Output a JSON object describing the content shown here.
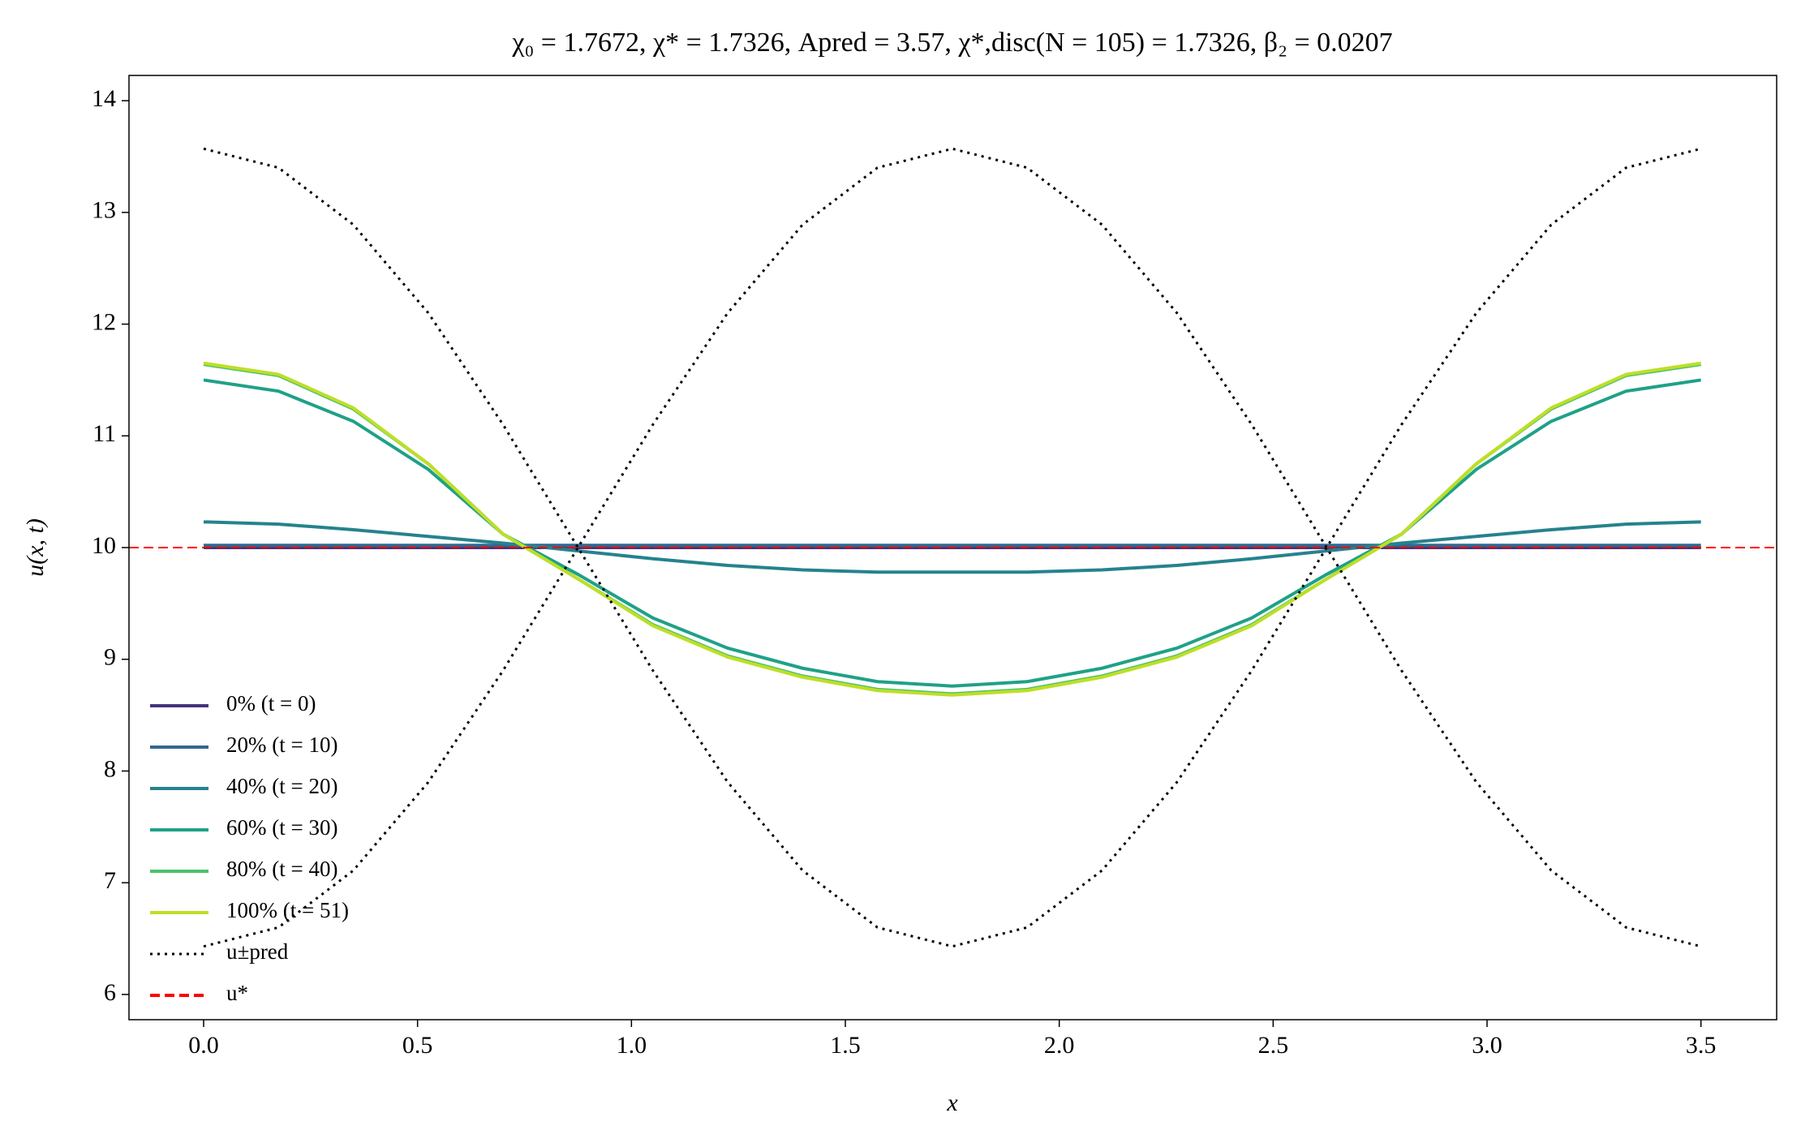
{
  "chart_data": {
    "type": "line",
    "title": "χ₀ = 1.7672,  χ* = 1.7326,  Apred = 3.57,  χ*,disc(N = 105) = 1.7326,  β₂ = 0.0207",
    "x_label": "x",
    "y_label": "u(x, t)",
    "x": [
      0,
      0.175,
      0.35,
      0.525,
      0.7,
      0.875,
      1.05,
      1.225,
      1.4,
      1.575,
      1.75,
      1.925,
      2.1,
      2.275,
      2.45,
      2.625,
      2.8,
      2.975,
      3.15,
      3.325,
      3.5
    ],
    "series": [
      {
        "name": "0% (t = 0)",
        "color": "#46337e",
        "style": "solid",
        "values": [
          10,
          10,
          10,
          10,
          10,
          10,
          10,
          10,
          10,
          10,
          10,
          10,
          10,
          10,
          10,
          10,
          10,
          10,
          10,
          10,
          10
        ]
      },
      {
        "name": "20% (t = 10)",
        "color": "#31688e",
        "style": "solid",
        "values": [
          10.02,
          10.02,
          10.02,
          10.02,
          10.02,
          10.02,
          10.02,
          10.02,
          10.02,
          10.02,
          10.02,
          10.02,
          10.02,
          10.02,
          10.02,
          10.02,
          10.02,
          10.02,
          10.02,
          10.02,
          10.02
        ]
      },
      {
        "name": "40% (t = 20)",
        "color": "#26828e",
        "style": "solid",
        "values": [
          10.23,
          10.21,
          10.16,
          10.1,
          10.04,
          9.97,
          9.9,
          9.84,
          9.8,
          9.78,
          9.78,
          9.78,
          9.8,
          9.84,
          9.9,
          9.97,
          10.04,
          10.1,
          10.16,
          10.21,
          10.23
        ]
      },
      {
        "name": "60% (t = 30)",
        "color": "#1fa187",
        "style": "solid",
        "values": [
          11.5,
          11.4,
          11.13,
          10.7,
          10.12,
          9.76,
          9.37,
          9.1,
          8.92,
          8.8,
          8.76,
          8.8,
          8.92,
          9.1,
          9.37,
          9.76,
          10.12,
          10.7,
          11.13,
          11.4,
          11.5
        ]
      },
      {
        "name": "80% (t = 40)",
        "color": "#4ac16d",
        "style": "solid",
        "values": [
          11.64,
          11.54,
          11.24,
          10.75,
          10.12,
          9.72,
          9.31,
          9.03,
          8.85,
          8.73,
          8.69,
          8.73,
          8.85,
          9.03,
          9.31,
          9.72,
          10.12,
          10.75,
          11.24,
          11.54,
          11.64
        ]
      },
      {
        "name": "100% (t = 51)",
        "color": "#bddf26",
        "style": "solid",
        "values": [
          11.65,
          11.55,
          11.25,
          10.75,
          10.12,
          9.72,
          9.3,
          9.02,
          8.84,
          8.72,
          8.68,
          8.72,
          8.84,
          9.02,
          9.3,
          9.72,
          10.12,
          10.75,
          11.25,
          11.55,
          11.65
        ]
      },
      {
        "name": "u±pred",
        "color": "#000000",
        "style": "dotted",
        "values": [
          13.57,
          13.4,
          12.89,
          12.1,
          11.1,
          10,
          8.9,
          7.9,
          7.11,
          6.6,
          6.43,
          6.6,
          7.11,
          7.9,
          8.9,
          10,
          11.1,
          12.1,
          12.89,
          13.4,
          13.57
        ]
      },
      {
        "color": "#000000",
        "style": "dotted",
        "values": [
          6.43,
          6.6,
          7.11,
          7.9,
          8.9,
          10,
          11.1,
          12.1,
          12.89,
          13.4,
          13.57,
          13.4,
          12.89,
          12.1,
          11.1,
          10,
          8.9,
          7.9,
          7.11,
          6.6,
          6.43
        ]
      }
    ],
    "hline": {
      "name": "u*",
      "value": 10,
      "color": "#ff0000",
      "style": "dashed"
    },
    "xlim": [
      -0.1745,
      3.677
    ],
    "ylim": [
      5.774,
      14.226
    ],
    "xticks": [
      {
        "value": 0,
        "label": "0.0"
      },
      0.5,
      {
        "value": 1,
        "label": "1.0"
      },
      1.5,
      {
        "value": 2,
        "label": "2.0"
      },
      2.5,
      {
        "value": 3,
        "label": "3.0"
      },
      3.5
    ],
    "yticks": [
      6,
      7,
      8,
      9,
      10,
      11,
      12,
      13,
      14
    ],
    "grid": false,
    "legend": "lower left"
  }
}
